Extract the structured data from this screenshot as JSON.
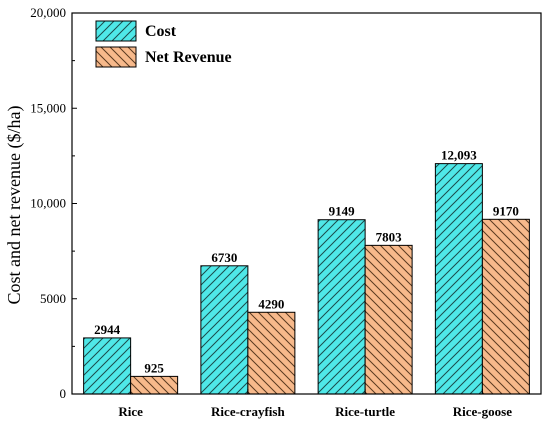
{
  "chart_data": {
    "type": "bar",
    "categories": [
      "Rice",
      "Rice-crayfish",
      "Rice-turtle",
      "Rice-goose"
    ],
    "series": [
      {
        "name": "Cost",
        "values": [
          2944,
          6730,
          9149,
          12093
        ],
        "labels": [
          "2944",
          "6730",
          "9149",
          "12,093"
        ],
        "color": "#4fe8e8"
      },
      {
        "name": "Net Revenue",
        "values": [
          925,
          4290,
          7803,
          9170
        ],
        "labels": [
          "925",
          "4290",
          "7803",
          "9170"
        ],
        "color": "#f7b98b"
      }
    ],
    "ylabel": "Cost and net revenue ($/ha)",
    "xlabel": "",
    "ylim": [
      0,
      20000
    ],
    "yticks": [
      0,
      5000,
      10000,
      15000,
      20000
    ],
    "ytick_labels": [
      "0",
      "5000",
      "10,000",
      "15,000",
      "20,000"
    ],
    "grid": false,
    "legend_position": "top-left",
    "hatch": "diagonal"
  }
}
